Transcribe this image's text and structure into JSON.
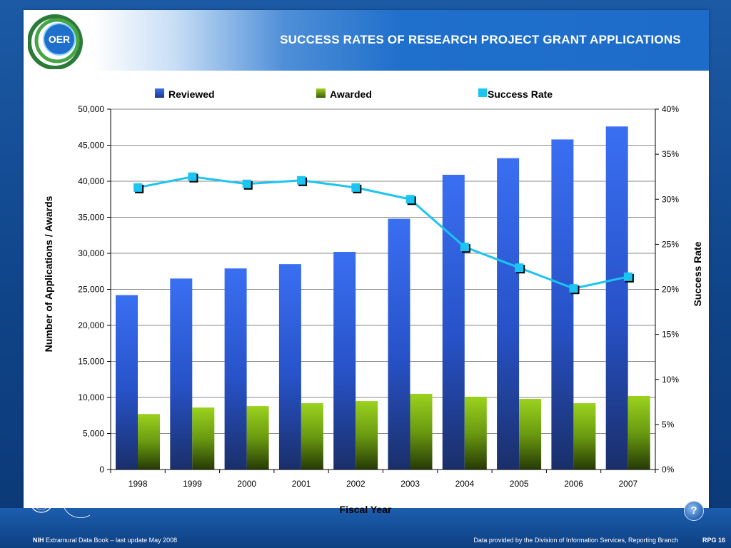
{
  "header": {
    "title": "SUCCESS RATES OF RESEARCH PROJECT GRANT APPLICATIONS",
    "logo_text": "OER"
  },
  "footer": {
    "nih_label": "NIH",
    "left_text": " Extramural Data Book – last update May 2008",
    "middle_text": "Data provided by the Division of Information Services, Reporting Branch",
    "page_label": "RPG 16",
    "help_label": "?"
  },
  "colors": {
    "reviewed": "#2f63e6",
    "awarded": "#8fc21a",
    "success_rate": "#1cc4f2"
  },
  "chart_data": {
    "type": "bar",
    "title": "",
    "xlabel": "Fiscal Year",
    "ylabel": "Number of Applications / Awards",
    "y2label": "Success Rate",
    "ylim": [
      0,
      50000
    ],
    "y2lim": [
      0,
      40
    ],
    "yticks": [
      "0",
      "5,000",
      "10,000",
      "15,000",
      "20,000",
      "25,000",
      "30,000",
      "35,000",
      "40,000",
      "45,000",
      "50,000"
    ],
    "y2ticks": [
      "0%",
      "5%",
      "10%",
      "15%",
      "20%",
      "25%",
      "30%",
      "35%",
      "40%"
    ],
    "grid": true,
    "legend_position": "top",
    "categories": [
      "1998",
      "1999",
      "2000",
      "2001",
      "2002",
      "2003",
      "2004",
      "2005",
      "2006",
      "2007"
    ],
    "series": [
      {
        "name": "Reviewed",
        "axis": "left",
        "kind": "bar",
        "values": [
          24200,
          26500,
          27900,
          28500,
          30200,
          34800,
          40900,
          43200,
          45800,
          47600
        ]
      },
      {
        "name": "Awarded",
        "axis": "left",
        "kind": "bar",
        "values": [
          7700,
          8600,
          8800,
          9200,
          9500,
          10500,
          10100,
          9800,
          9200,
          10200
        ]
      },
      {
        "name": "Success Rate",
        "axis": "right",
        "kind": "line",
        "values": [
          31.3,
          32.5,
          31.7,
          32.1,
          31.3,
          30.0,
          24.7,
          22.4,
          20.1,
          21.4
        ]
      }
    ]
  }
}
